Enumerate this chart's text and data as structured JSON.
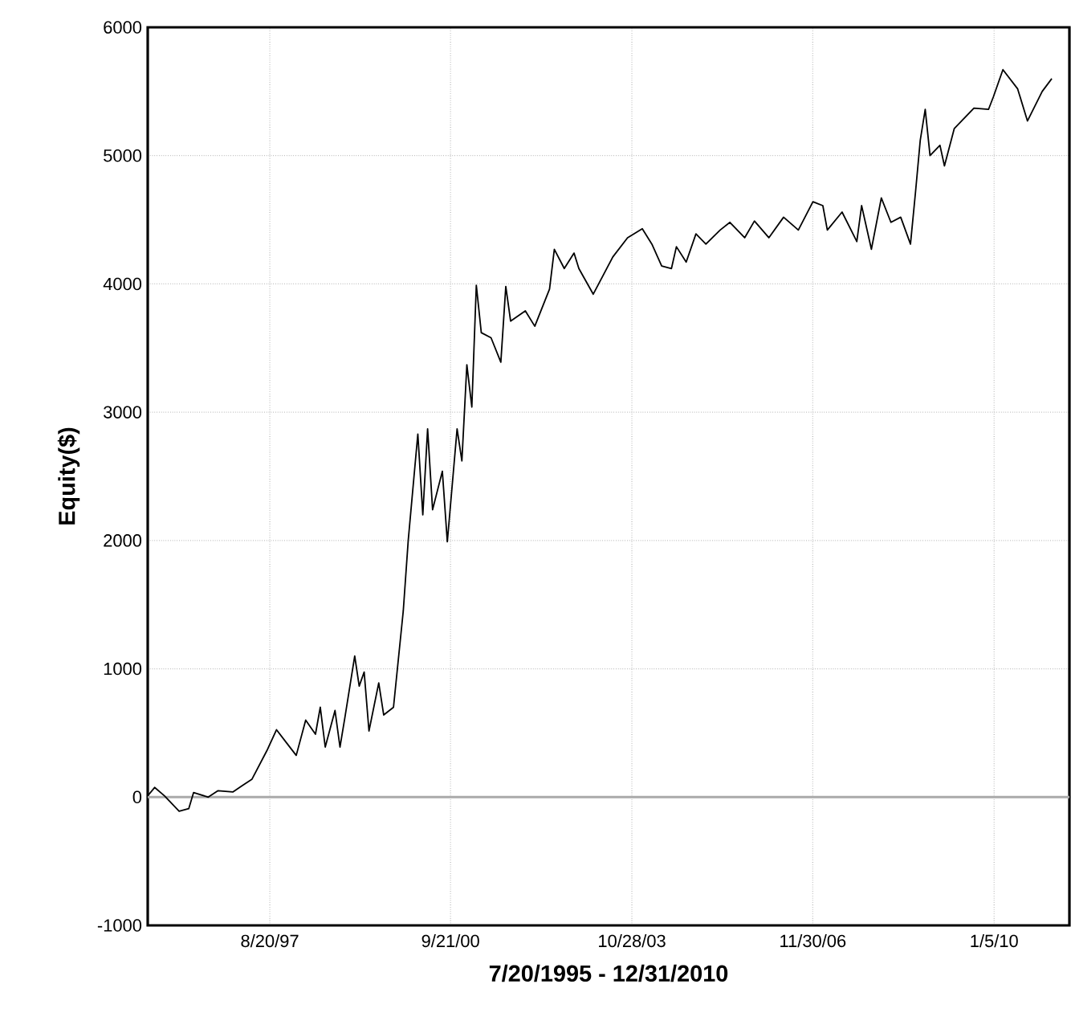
{
  "chart_data": {
    "type": "line",
    "xlabel": "7/20/1995 - 12/31/2010",
    "ylabel": "Equity($)",
    "xlim": [
      "1995-07-20",
      "2011-04-20"
    ],
    "ylim": [
      -1000,
      6000
    ],
    "xticks": [
      {
        "value": "1997-08-20",
        "label": "8/20/97"
      },
      {
        "value": "2000-09-21",
        "label": "9/21/00"
      },
      {
        "value": "2003-10-28",
        "label": "10/28/03"
      },
      {
        "value": "2006-11-30",
        "label": "11/30/06"
      },
      {
        "value": "2010-01-05",
        "label": "1/5/10"
      }
    ],
    "yticks": [
      -1000,
      0,
      1000,
      2000,
      3000,
      4000,
      5000,
      6000
    ],
    "grid": true,
    "marker": "none",
    "line_style": "solid",
    "ref_lines": [
      {
        "axis": "y",
        "value": 0,
        "color": "#aaaaaa"
      }
    ],
    "x": [
      "1995-07-20",
      "1995-09",
      "1995-11",
      "1996-02",
      "1996-04",
      "1996-05",
      "1996-08",
      "1996-10",
      "1997-01",
      "1997-03",
      "1997-05",
      "1997-08",
      "1997-10",
      "1997-12",
      "1998-02",
      "1998-04",
      "1998-06",
      "1998-07",
      "1998-08",
      "1998-10",
      "1998-11",
      "1998-12",
      "1999-02",
      "1999-03",
      "1999-04",
      "1999-05",
      "1999-07",
      "1999-08",
      "1999-10",
      "1999-12",
      "2000-01",
      "2000-03",
      "2000-04",
      "2000-05",
      "2000-06",
      "2000-08",
      "2000-09",
      "2000-11",
      "2000-12",
      "2001-01",
      "2001-02",
      "2001-03",
      "2001-04",
      "2001-06",
      "2001-08",
      "2001-09",
      "2001-10",
      "2002-01",
      "2002-03",
      "2002-06",
      "2002-07",
      "2002-09",
      "2002-11",
      "2002-12",
      "2003-03",
      "2003-07",
      "2003-10",
      "2004-01",
      "2004-03",
      "2004-05",
      "2004-07",
      "2004-08",
      "2004-10",
      "2004-12",
      "2005-02",
      "2005-05",
      "2005-07",
      "2005-10",
      "2005-12",
      "2006-03",
      "2006-06",
      "2006-09",
      "2006-12",
      "2007-02",
      "2007-03",
      "2007-06",
      "2007-09",
      "2007-10",
      "2007-12",
      "2008-02",
      "2008-04",
      "2008-06",
      "2008-08",
      "2008-09",
      "2008-10",
      "2008-11",
      "2008-12",
      "2009-02",
      "2009-03",
      "2009-05",
      "2009-09",
      "2009-12",
      "2010-01",
      "2010-03",
      "2010-06",
      "2010-08",
      "2010-11",
      "2010-12-31"
    ],
    "series": [
      {
        "color": "#000000",
        "values": [
          10,
          75,
          10,
          -110,
          -90,
          35,
          0,
          50,
          40,
          90,
          140,
          360,
          525,
          425,
          325,
          600,
          490,
          700,
          390,
          675,
          390,
          615,
          1100,
          865,
          975,
          515,
          890,
          640,
          700,
          1450,
          2000,
          2830,
          2200,
          2870,
          2240,
          2540,
          1990,
          2870,
          2620,
          3370,
          3040,
          3990,
          3620,
          3580,
          3390,
          3980,
          3710,
          3790,
          3670,
          3960,
          4270,
          4120,
          4240,
          4120,
          3920,
          4210,
          4360,
          4430,
          4310,
          4140,
          4120,
          4290,
          4170,
          4390,
          4310,
          4420,
          4480,
          4360,
          4490,
          4360,
          4520,
          4420,
          4640,
          4610,
          4420,
          4560,
          4330,
          4610,
          4270,
          4670,
          4480,
          4520,
          4310,
          4710,
          5120,
          5360,
          5000,
          5080,
          4920,
          5210,
          5370,
          5360,
          5460,
          5670,
          5520,
          5270,
          5500,
          5600
        ]
      }
    ]
  }
}
